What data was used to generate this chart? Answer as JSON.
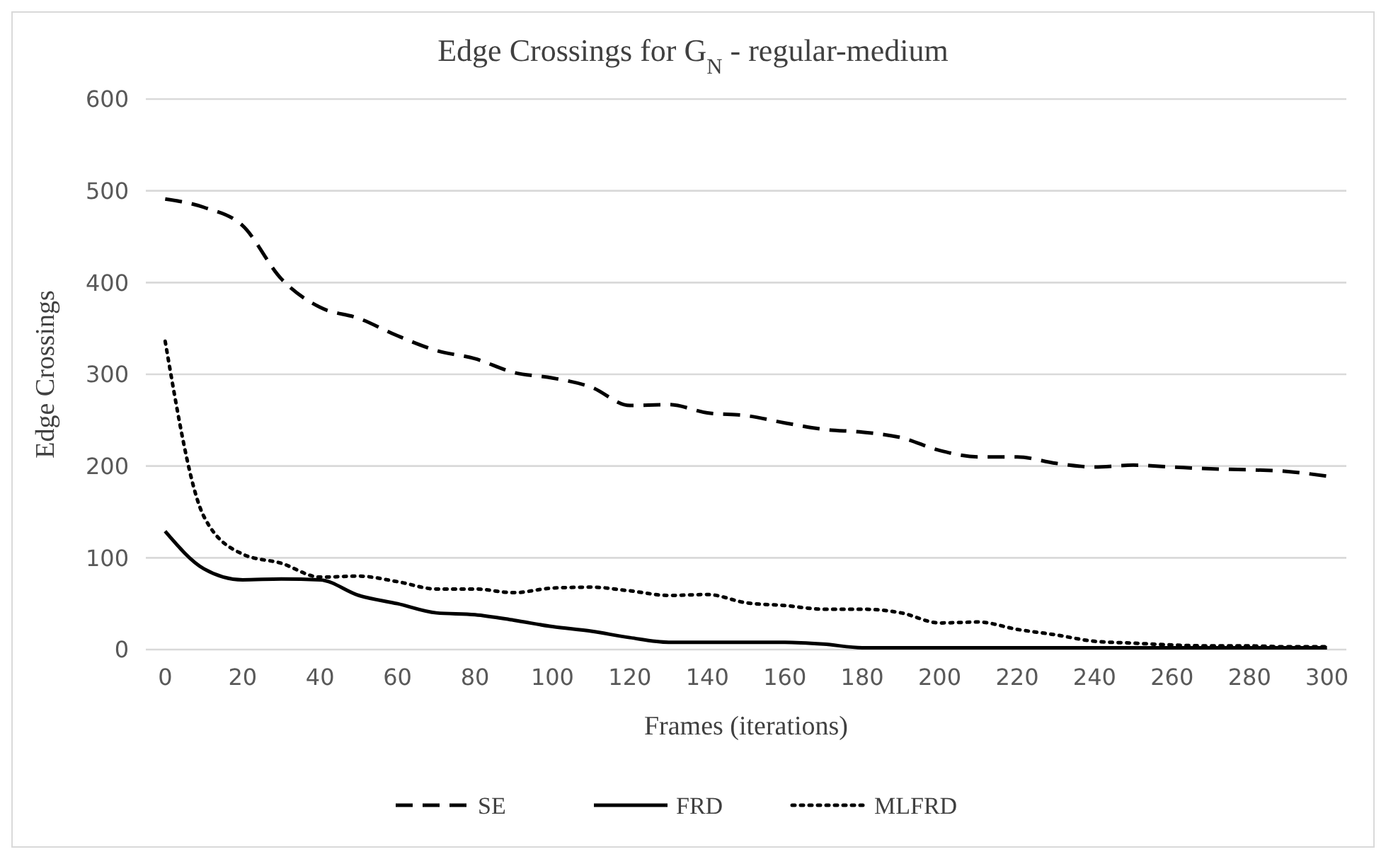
{
  "chart_data": {
    "type": "line",
    "title": "Edge Crossings for G$_{N}$ - regular-medium",
    "xlabel": "Frames (iterations)",
    "ylabel": "Edge Crossings",
    "x": [
      0,
      10,
      20,
      30,
      40,
      50,
      60,
      70,
      80,
      90,
      100,
      110,
      120,
      130,
      140,
      150,
      160,
      170,
      180,
      190,
      200,
      210,
      220,
      230,
      240,
      250,
      260,
      270,
      280,
      290,
      300
    ],
    "series": [
      {
        "name": "SE",
        "color": "#000000",
        "line_style": "dashed",
        "values": [
          491,
          482,
          462,
          404,
          373,
          361,
          342,
          326,
          317,
          302,
          296,
          286,
          266,
          267,
          258,
          255,
          247,
          240,
          237,
          231,
          217,
          210,
          210,
          203,
          199,
          201,
          199,
          197,
          196,
          194,
          189
        ]
      },
      {
        "name": "FRD",
        "color": "#000000",
        "line_style": "solid",
        "values": [
          129,
          88,
          76,
          77,
          76,
          59,
          50,
          40,
          38,
          32,
          25,
          20,
          13,
          8,
          8,
          8,
          8,
          6,
          2,
          2,
          2,
          2,
          2,
          2,
          2,
          2,
          2,
          2,
          2,
          2,
          2
        ]
      },
      {
        "name": "MLFRD",
        "color": "#000000",
        "line_style": "dotted",
        "values": [
          336,
          145,
          104,
          94,
          79,
          80,
          74,
          66,
          66,
          62,
          67,
          68,
          64,
          59,
          60,
          51,
          48,
          44,
          44,
          40,
          29,
          30,
          22,
          16,
          9,
          7,
          5,
          4,
          4,
          3,
          3
        ]
      }
    ],
    "xlim": [
      -5,
      305
    ],
    "xticks": [
      0,
      20,
      40,
      60,
      80,
      100,
      120,
      140,
      160,
      180,
      200,
      220,
      240,
      260,
      280,
      300
    ],
    "ylim": [
      0,
      600
    ],
    "yticks": [
      0,
      100,
      200,
      300,
      400,
      500,
      600
    ],
    "grid": "y",
    "legend": "bottom",
    "marker": "none"
  }
}
